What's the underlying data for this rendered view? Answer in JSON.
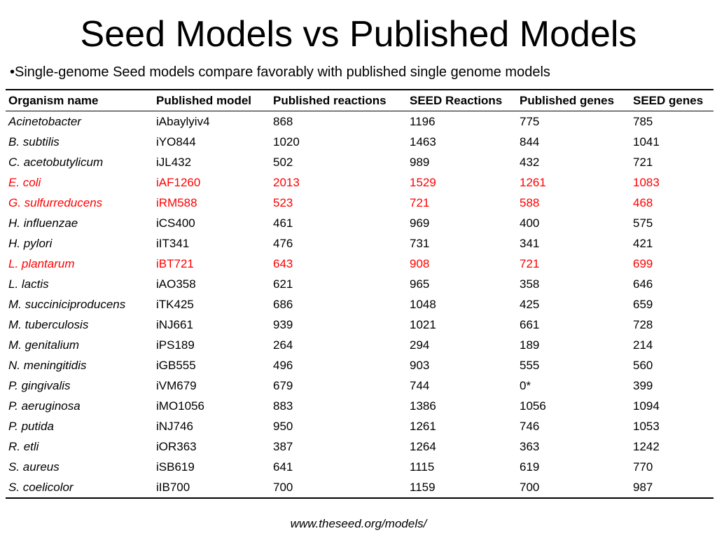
{
  "slide": {
    "title": "Seed Models vs Published Models",
    "bullet": "•Single-genome Seed models compare favorably with published single genome models",
    "footer": "www.theseed.org/models/"
  },
  "colors": {
    "highlight": "#ff0000",
    "text": "#000000",
    "background": "#ffffff"
  },
  "table": {
    "headers": [
      "Organism name",
      "Published model",
      "Published reactions",
      "SEED Reactions",
      "Published genes",
      "SEED genes"
    ],
    "rows": [
      {
        "organism": "Acinetobacter",
        "model": "iAbaylyiv4",
        "pub_rxn": "868",
        "seed_rxn": "1196",
        "pub_genes": "775",
        "seed_genes": "785",
        "highlight": false
      },
      {
        "organism": "B. subtilis",
        "model": "iYO844",
        "pub_rxn": "1020",
        "seed_rxn": "1463",
        "pub_genes": "844",
        "seed_genes": "1041",
        "highlight": false
      },
      {
        "organism": "C. acetobutylicum",
        "model": "iJL432",
        "pub_rxn": "502",
        "seed_rxn": "989",
        "pub_genes": "432",
        "seed_genes": "721",
        "highlight": false
      },
      {
        "organism": "E. coli",
        "model": "iAF1260",
        "pub_rxn": "2013",
        "seed_rxn": "1529",
        "pub_genes": "1261",
        "seed_genes": "1083",
        "highlight": true
      },
      {
        "organism": "G. sulfurreducens",
        "model": "iRM588",
        "pub_rxn": "523",
        "seed_rxn": "721",
        "pub_genes": "588",
        "seed_genes": "468",
        "highlight": true
      },
      {
        "organism": "H. influenzae",
        "model": "iCS400",
        "pub_rxn": "461",
        "seed_rxn": "969",
        "pub_genes": "400",
        "seed_genes": "575",
        "highlight": false
      },
      {
        "organism": "H. pylori",
        "model": "iIT341",
        "pub_rxn": "476",
        "seed_rxn": "731",
        "pub_genes": "341",
        "seed_genes": "421",
        "highlight": false
      },
      {
        "organism": "L. plantarum",
        "model": "iBT721",
        "pub_rxn": "643",
        "seed_rxn": "908",
        "pub_genes": "721",
        "seed_genes": "699",
        "highlight": true
      },
      {
        "organism": "L. lactis",
        "model": "iAO358",
        "pub_rxn": "621",
        "seed_rxn": "965",
        "pub_genes": "358",
        "seed_genes": "646",
        "highlight": false
      },
      {
        "organism": "M. succiniciproducens",
        "model": "iTK425",
        "pub_rxn": "686",
        "seed_rxn": "1048",
        "pub_genes": "425",
        "seed_genes": "659",
        "highlight": false
      },
      {
        "organism": "M. tuberculosis",
        "model": "iNJ661",
        "pub_rxn": "939",
        "seed_rxn": "1021",
        "pub_genes": "661",
        "seed_genes": "728",
        "highlight": false
      },
      {
        "organism": "M. genitalium",
        "model": "iPS189",
        "pub_rxn": "264",
        "seed_rxn": "294",
        "pub_genes": "189",
        "seed_genes": "214",
        "highlight": false
      },
      {
        "organism": "N. meningitidis",
        "model": "iGB555",
        "pub_rxn": "496",
        "seed_rxn": "903",
        "pub_genes": "555",
        "seed_genes": "560",
        "highlight": false
      },
      {
        "organism": "P. gingivalis",
        "model": "iVM679",
        "pub_rxn": "679",
        "seed_rxn": "744",
        "pub_genes": "0*",
        "seed_genes": "399",
        "highlight": false
      },
      {
        "organism": "P. aeruginosa",
        "model": "iMO1056",
        "pub_rxn": "883",
        "seed_rxn": "1386",
        "pub_genes": "1056",
        "seed_genes": "1094",
        "highlight": false
      },
      {
        "organism": "P. putida",
        "model": "iNJ746",
        "pub_rxn": "950",
        "seed_rxn": "1261",
        "pub_genes": "746",
        "seed_genes": "1053",
        "highlight": false
      },
      {
        "organism": "R. etli",
        "model": "iOR363",
        "pub_rxn": "387",
        "seed_rxn": "1264",
        "pub_genes": "363",
        "seed_genes": "1242",
        "highlight": false
      },
      {
        "organism": "S. aureus",
        "model": "iSB619",
        "pub_rxn": "641",
        "seed_rxn": "1115",
        "pub_genes": "619",
        "seed_genes": "770",
        "highlight": false
      },
      {
        "organism": "S. coelicolor",
        "model": "iIB700",
        "pub_rxn": "700",
        "seed_rxn": "1159",
        "pub_genes": "700",
        "seed_genes": "987",
        "highlight": false
      }
    ]
  }
}
